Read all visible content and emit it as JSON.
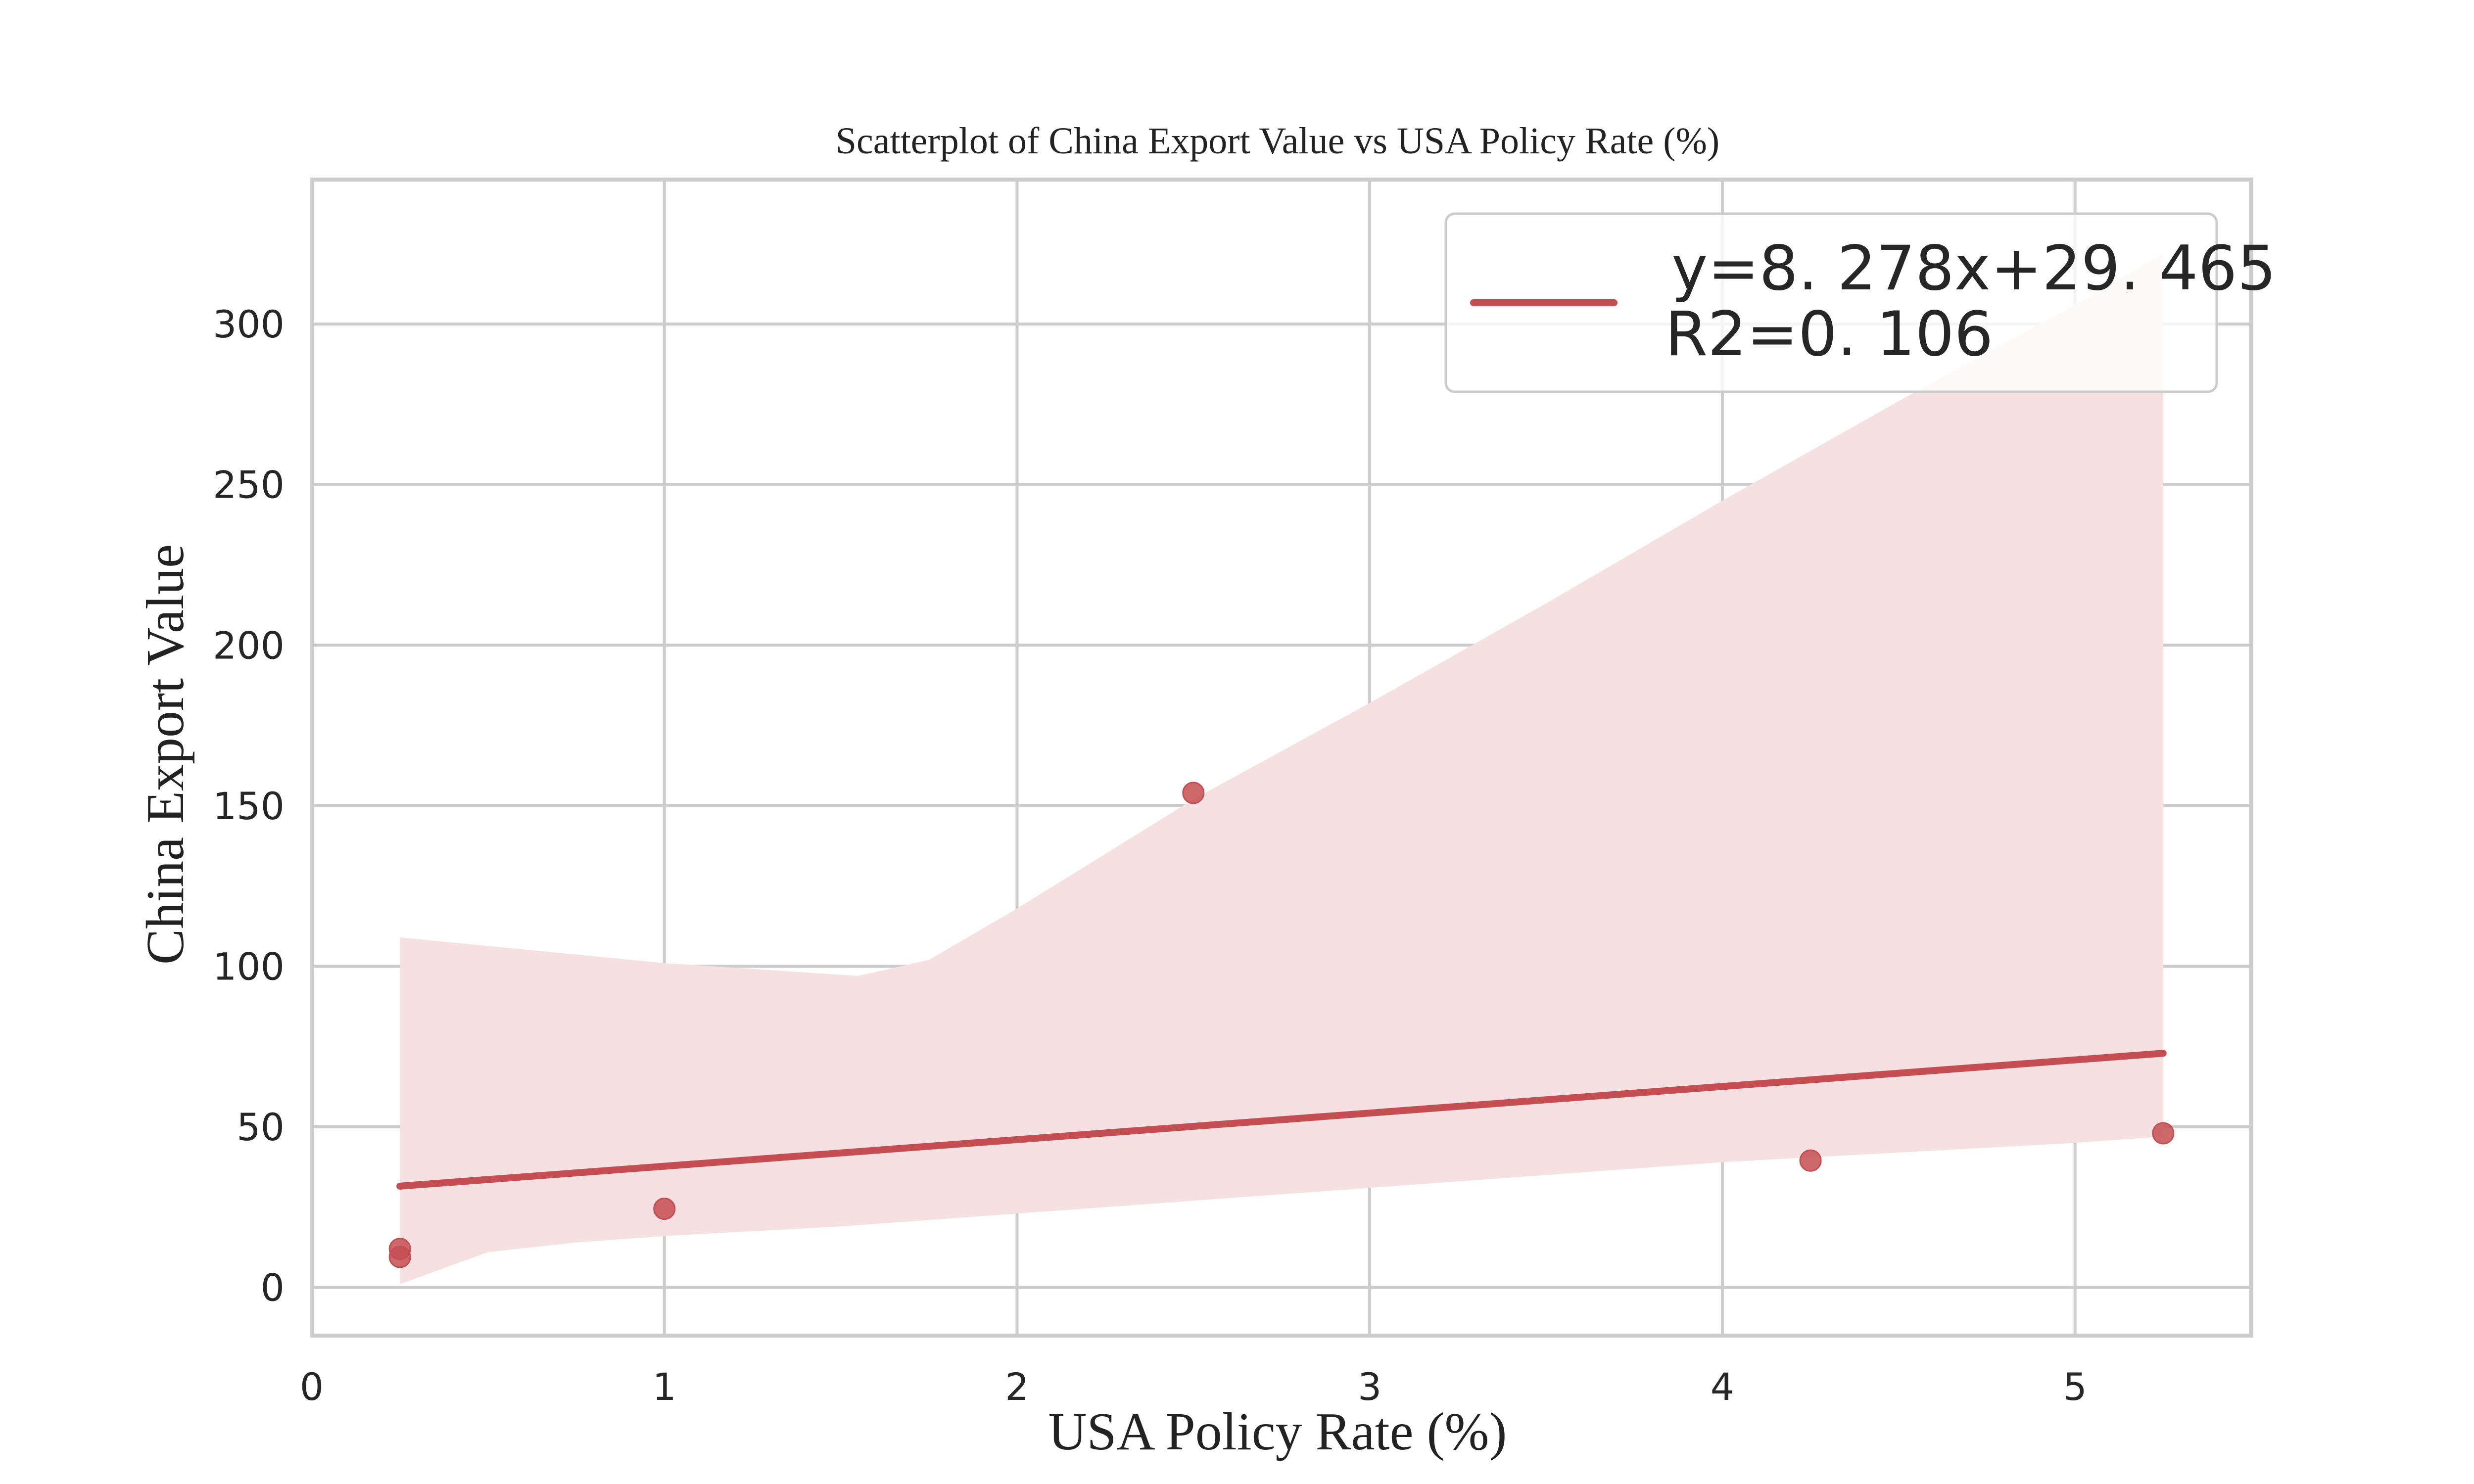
{
  "chart_data": {
    "type": "scatter",
    "title": "Scatterplot of China Export Value vs USA Policy Rate (%)",
    "xlabel": "USA Policy Rate (%)",
    "ylabel": "China Export Value",
    "xlim": [
      0,
      5.5
    ],
    "ylim": [
      -15,
      345
    ],
    "x_ticks": [
      0,
      1,
      2,
      3,
      4,
      5
    ],
    "y_ticks": [
      0,
      50,
      100,
      150,
      200,
      250,
      300
    ],
    "grid": true,
    "points": [
      {
        "x": 0.25,
        "y": 12
      },
      {
        "x": 0.25,
        "y": 9.5
      },
      {
        "x": 1.0,
        "y": 24.5
      },
      {
        "x": 2.5,
        "y": 154
      },
      {
        "x": 4.25,
        "y": 39.5
      },
      {
        "x": 5.25,
        "y": 48
      }
    ],
    "regression": {
      "slope": 8.278,
      "intercept": 29.465,
      "x_range": [
        0.25,
        5.25
      ]
    },
    "confidence_band": {
      "upper": [
        {
          "x": 0.25,
          "y": 109
        },
        {
          "x": 1.0,
          "y": 101
        },
        {
          "x": 1.55,
          "y": 97
        },
        {
          "x": 1.75,
          "y": 102
        },
        {
          "x": 2.0,
          "y": 118
        },
        {
          "x": 2.5,
          "y": 152
        },
        {
          "x": 3.0,
          "y": 182
        },
        {
          "x": 3.5,
          "y": 213
        },
        {
          "x": 4.0,
          "y": 245
        },
        {
          "x": 4.5,
          "y": 276
        },
        {
          "x": 5.0,
          "y": 306
        },
        {
          "x": 5.25,
          "y": 322
        }
      ],
      "lower": [
        {
          "x": 0.25,
          "y": 1
        },
        {
          "x": 0.4,
          "y": 7
        },
        {
          "x": 0.5,
          "y": 11
        },
        {
          "x": 0.75,
          "y": 14
        },
        {
          "x": 1.0,
          "y": 16
        },
        {
          "x": 1.5,
          "y": 19
        },
        {
          "x": 2.0,
          "y": 23
        },
        {
          "x": 2.5,
          "y": 27
        },
        {
          "x": 3.0,
          "y": 31
        },
        {
          "x": 3.5,
          "y": 35
        },
        {
          "x": 4.0,
          "y": 39
        },
        {
          "x": 4.5,
          "y": 42
        },
        {
          "x": 5.0,
          "y": 45
        },
        {
          "x": 5.25,
          "y": 47
        }
      ]
    },
    "legend": {
      "placement": "top-right",
      "line1": "y=8. 278x+29. 465",
      "line2": "R2=0. 106"
    },
    "colors": {
      "series": "#c44e52",
      "band": "#f5e1e2",
      "grid": "#cccccc",
      "spine": "#cccccc"
    }
  }
}
